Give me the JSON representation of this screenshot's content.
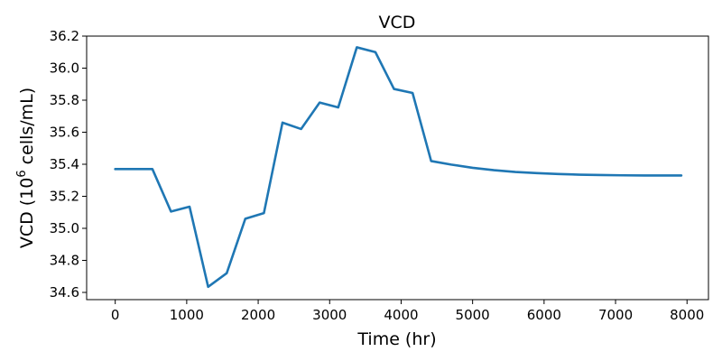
{
  "chart_data": {
    "type": "line",
    "title": "VCD",
    "xlabel": "Time (hr)",
    "ylabel": {
      "prefix": "VCD (10",
      "superscript": "6",
      "suffix": " cells/mL)"
    },
    "xlim": [
      -400,
      8300
    ],
    "ylim": [
      34.555,
      36.2
    ],
    "xticks": [
      0,
      1000,
      2000,
      3000,
      4000,
      5000,
      6000,
      7000,
      8000
    ],
    "xtick_labels": [
      "0",
      "1000",
      "2000",
      "3000",
      "4000",
      "5000",
      "6000",
      "7000",
      "8000"
    ],
    "yticks": [
      34.6,
      34.8,
      35.0,
      35.2,
      35.4,
      35.6,
      35.8,
      36.0,
      36.2
    ],
    "ytick_labels": [
      "34.6",
      "34.8",
      "35.0",
      "35.2",
      "35.4",
      "35.6",
      "35.8",
      "36.0",
      "36.2"
    ],
    "grid": false,
    "legend": "none",
    "series": [
      {
        "color": "#1f77b4",
        "x": [
          0,
          520,
          780,
          1040,
          1300,
          1560,
          1820,
          2080,
          2340,
          2600,
          2860,
          3120,
          3380,
          3640,
          3900,
          4160,
          4420,
          4700,
          5000,
          5300,
          5600,
          5900,
          6200,
          6500,
          6800,
          7100,
          7400,
          7700,
          7920
        ],
        "y": [
          35.37,
          35.37,
          35.105,
          35.135,
          34.635,
          34.72,
          35.06,
          35.095,
          35.66,
          35.62,
          35.785,
          35.755,
          36.13,
          36.1,
          35.87,
          35.845,
          35.42,
          35.398,
          35.378,
          35.363,
          35.352,
          35.345,
          35.339,
          35.335,
          35.333,
          35.331,
          35.33,
          35.33,
          35.33
        ]
      }
    ]
  }
}
